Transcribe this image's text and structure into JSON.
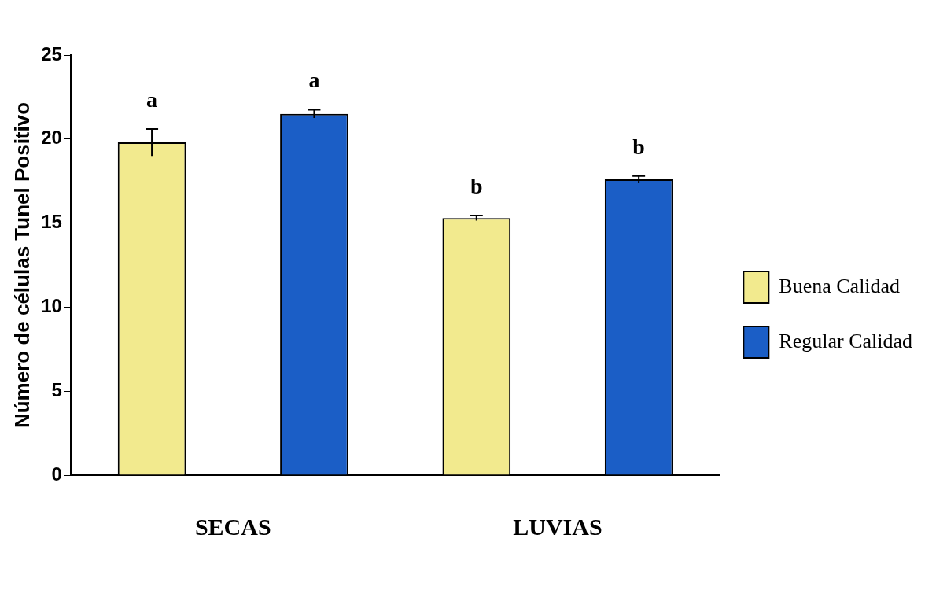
{
  "chart_data": {
    "type": "bar",
    "ylabel": "Número de células Tunel Positivo",
    "categories": [
      "SECAS",
      "LUVIAS"
    ],
    "series": [
      {
        "name": "Buena Calidad",
        "color": "#f2ea8e",
        "values": [
          19.8,
          15.3
        ],
        "errors": [
          0.8,
          0.15
        ]
      },
      {
        "name": "Regular Calidad",
        "color": "#1b5ec6",
        "values": [
          21.5,
          17.6
        ],
        "errors": [
          0.25,
          0.2
        ]
      }
    ],
    "ylim": [
      0,
      25
    ],
    "yticks": [
      0,
      5,
      10,
      15,
      20,
      25
    ],
    "grid": false,
    "legend": "right",
    "annotations": [
      "a",
      "a",
      "b",
      "b"
    ]
  }
}
